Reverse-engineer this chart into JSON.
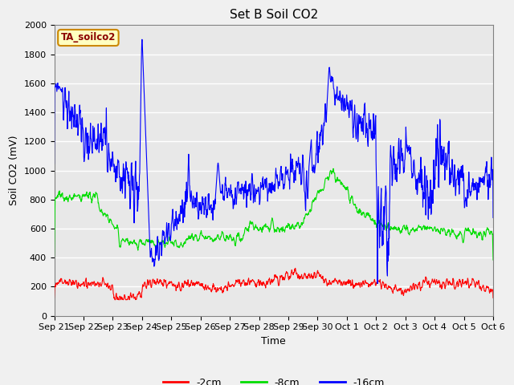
{
  "title": "Set B Soil CO2",
  "ylabel": "Soil CO2 (mV)",
  "xlabel": "Time",
  "annotation": "TA_soilco2",
  "ylim": [
    0,
    2000
  ],
  "bg_color": "#e8e8e8",
  "line_2cm_color": "#ff0000",
  "line_8cm_color": "#00dd00",
  "line_16cm_color": "#0000ff",
  "legend_labels": [
    "-2cm",
    "-8cm",
    "-16cm"
  ],
  "xtick_labels": [
    "Sep 21",
    "Sep 22",
    "Sep 23",
    "Sep 24",
    "Sep 25",
    "Sep 26",
    "Sep 27",
    "Sep 28",
    "Sep 29",
    "Sep 30",
    "Oct 1",
    "Oct 2",
    "Oct 3",
    "Oct 4",
    "Oct 5",
    "Oct 6"
  ],
  "ytick_labels": [
    0,
    200,
    400,
    600,
    800,
    1000,
    1200,
    1400,
    1600,
    1800,
    2000
  ],
  "title_fontsize": 11,
  "label_fontsize": 9,
  "tick_fontsize": 8
}
